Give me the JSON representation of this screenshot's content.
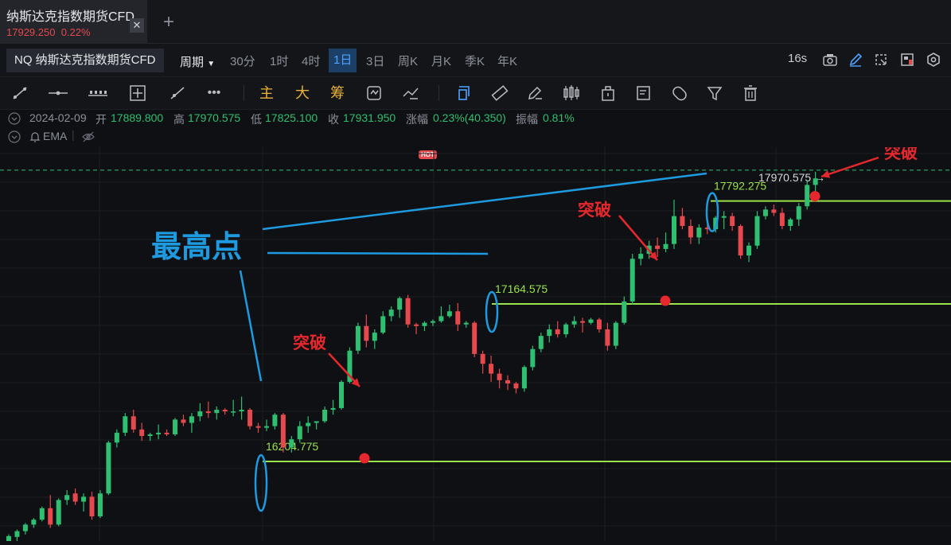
{
  "tab": {
    "title": "纳斯达克指数期货CFD",
    "price": "17929.250",
    "change": "0.22%",
    "close_icon": "close-icon",
    "add_icon": "plus-icon"
  },
  "toolbar": {
    "symbol": "NQ 纳斯达克指数期货CFD",
    "period_label": "周期",
    "periods": [
      "30分",
      "1时",
      "4时",
      "1日",
      "3日",
      "周K",
      "月K",
      "季K",
      "年K"
    ],
    "active_period": "1日",
    "refresh": "16s",
    "right_icons": [
      "camera-icon",
      "pencil-icon",
      "resize-icon",
      "layout-icon",
      "settings-icon"
    ]
  },
  "drawing_tools": {
    "icons": [
      "trend-line-icon",
      "horizontal-line-icon",
      "channel-icon",
      "crosshair-icon",
      "ray-icon",
      "more-icon"
    ],
    "text_tools": [
      "主",
      "大",
      "筹"
    ],
    "icons2": [
      "replay-icon",
      "indicator-icon",
      "select-icon",
      "ruler-icon",
      "brush-icon",
      "candle-icon",
      "lock-icon",
      "note-icon",
      "magnet-icon",
      "filter-icon",
      "trash-icon"
    ],
    "hot_badge": "HOT"
  },
  "ohlc": {
    "date": "2024-02-09",
    "open_label": "开",
    "open": "17889.800",
    "high_label": "高",
    "high": "17970.575",
    "low_label": "低",
    "low": "17825.100",
    "close_label": "收",
    "close": "17931.950",
    "change_label": "涨幅",
    "change": "0.23%(40.350)",
    "amp_label": "振幅",
    "amp": "0.81%"
  },
  "indicator": {
    "name": "EMA"
  },
  "colors": {
    "up": "#2fbf71",
    "down": "#e5484d",
    "level": "#9be34a",
    "annot": "#1e9be0",
    "text_annot": "#e5282d",
    "bg": "#0f1013"
  },
  "chart_data": {
    "type": "candlestick",
    "ylim": [
      15720,
      18120
    ],
    "current_price": "17970.575",
    "levels": [
      {
        "value": 16204.775,
        "label": "16204.775"
      },
      {
        "value": 17164.575,
        "label": "17164.575"
      },
      {
        "value": 17792.275,
        "label": "17792.275"
      }
    ],
    "annotation_title": "最高点",
    "breakout_label": "突破",
    "candles": [
      [
        15700,
        15760,
        15690,
        15750
      ],
      [
        15745,
        15790,
        15720,
        15780
      ],
      [
        15780,
        15830,
        15760,
        15820
      ],
      [
        15820,
        15860,
        15800,
        15850
      ],
      [
        15850,
        15930,
        15840,
        15920
      ],
      [
        15920,
        16000,
        15800,
        15820
      ],
      [
        15820,
        15980,
        15810,
        15970
      ],
      [
        15970,
        16030,
        15940,
        16000
      ],
      [
        16010,
        16040,
        15940,
        15960
      ],
      [
        15960,
        16010,
        15900,
        15990
      ],
      [
        15990,
        16020,
        15850,
        15870
      ],
      [
        15870,
        16030,
        15860,
        16010
      ],
      [
        16010,
        16330,
        16000,
        16320
      ],
      [
        16320,
        16400,
        16290,
        16380
      ],
      [
        16380,
        16500,
        16360,
        16480
      ],
      [
        16480,
        16520,
        16380,
        16400
      ],
      [
        16400,
        16440,
        16330,
        16360
      ],
      [
        16360,
        16380,
        16330,
        16370
      ],
      [
        16370,
        16430,
        16340,
        16380
      ],
      [
        16380,
        16400,
        16360,
        16370
      ],
      [
        16370,
        16470,
        16360,
        16460
      ],
      [
        16460,
        16490,
        16420,
        16440
      ],
      [
        16440,
        16500,
        16380,
        16480
      ],
      [
        16480,
        16560,
        16450,
        16510
      ],
      [
        16510,
        16570,
        16470,
        16500
      ],
      [
        16500,
        16540,
        16460,
        16520
      ],
      [
        16520,
        16530,
        16490,
        16510
      ],
      [
        16510,
        16580,
        16480,
        16510
      ],
      [
        16510,
        16600,
        16460,
        16520
      ],
      [
        16520,
        16530,
        16400,
        16420
      ],
      [
        16420,
        16440,
        16380,
        16410
      ],
      [
        16410,
        16460,
        16390,
        16420
      ],
      [
        16420,
        16500,
        16400,
        16490
      ],
      [
        16490,
        16500,
        16260,
        16290
      ],
      [
        16290,
        16360,
        16260,
        16340
      ],
      [
        16340,
        16450,
        16320,
        16420
      ],
      [
        16420,
        16480,
        16380,
        16440
      ],
      [
        16440,
        16450,
        16400,
        16450
      ],
      [
        16450,
        16540,
        16440,
        16520
      ],
      [
        16520,
        16580,
        16490,
        16530
      ],
      [
        16530,
        16700,
        16520,
        16690
      ],
      [
        16690,
        16900,
        16680,
        16880
      ],
      [
        16880,
        17050,
        16860,
        17030
      ],
      [
        17030,
        17100,
        16900,
        16940
      ],
      [
        16940,
        17010,
        16890,
        16990
      ],
      [
        16990,
        17120,
        16980,
        17090
      ],
      [
        17090,
        17150,
        17060,
        17130
      ],
      [
        17130,
        17210,
        17080,
        17200
      ],
      [
        17200,
        17220,
        17020,
        17040
      ],
      [
        17040,
        17050,
        16980,
        17030
      ],
      [
        17030,
        17060,
        17000,
        17050
      ],
      [
        17050,
        17070,
        17030,
        17060
      ],
      [
        17060,
        17150,
        17050,
        17090
      ],
      [
        17090,
        17160,
        17080,
        17120
      ],
      [
        17120,
        17170,
        17000,
        17040
      ],
      [
        17040,
        17060,
        17020,
        17050
      ],
      [
        17050,
        17060,
        16840,
        16860
      ],
      [
        16860,
        16880,
        16740,
        16800
      ],
      [
        16800,
        16850,
        16690,
        16740
      ],
      [
        16740,
        16770,
        16650,
        16700
      ],
      [
        16700,
        16730,
        16640,
        16680
      ],
      [
        16680,
        16690,
        16620,
        16650
      ],
      [
        16650,
        16790,
        16630,
        16780
      ],
      [
        16780,
        16910,
        16760,
        16890
      ],
      [
        16890,
        16990,
        16870,
        16970
      ],
      [
        16970,
        17040,
        16930,
        17010
      ],
      [
        17010,
        17060,
        16960,
        16980
      ],
      [
        16980,
        17050,
        16960,
        17040
      ],
      [
        17040,
        17090,
        17020,
        17060
      ],
      [
        17060,
        17080,
        16990,
        17050
      ],
      [
        17050,
        17080,
        17040,
        17070
      ],
      [
        17070,
        17080,
        16990,
        17010
      ],
      [
        17010,
        17050,
        16880,
        16910
      ],
      [
        16910,
        17060,
        16890,
        17050
      ],
      [
        17050,
        17210,
        17040,
        17180
      ],
      [
        17180,
        17470,
        17160,
        17440
      ],
      [
        17440,
        17510,
        17400,
        17470
      ],
      [
        17470,
        17550,
        17440,
        17520
      ],
      [
        17520,
        17570,
        17450,
        17500
      ],
      [
        17500,
        17600,
        17480,
        17530
      ],
      [
        17530,
        17800,
        17500,
        17700
      ],
      [
        17700,
        17750,
        17620,
        17640
      ],
      [
        17640,
        17680,
        17530,
        17570
      ],
      [
        17570,
        17650,
        17530,
        17630
      ],
      [
        17630,
        17680,
        17590,
        17620
      ],
      [
        17620,
        17700,
        17600,
        17690
      ],
      [
        17690,
        17730,
        17620,
        17700
      ],
      [
        17700,
        17720,
        17610,
        17640
      ],
      [
        17640,
        17650,
        17440,
        17460
      ],
      [
        17460,
        17540,
        17420,
        17520
      ],
      [
        17520,
        17730,
        17500,
        17700
      ],
      [
        17700,
        17760,
        17680,
        17740
      ],
      [
        17740,
        17770,
        17700,
        17720
      ],
      [
        17720,
        17750,
        17620,
        17640
      ],
      [
        17640,
        17690,
        17610,
        17680
      ],
      [
        17680,
        17780,
        17640,
        17760
      ],
      [
        17760,
        17920,
        17740,
        17890
      ],
      [
        17890,
        17970,
        17830,
        17930
      ]
    ]
  }
}
